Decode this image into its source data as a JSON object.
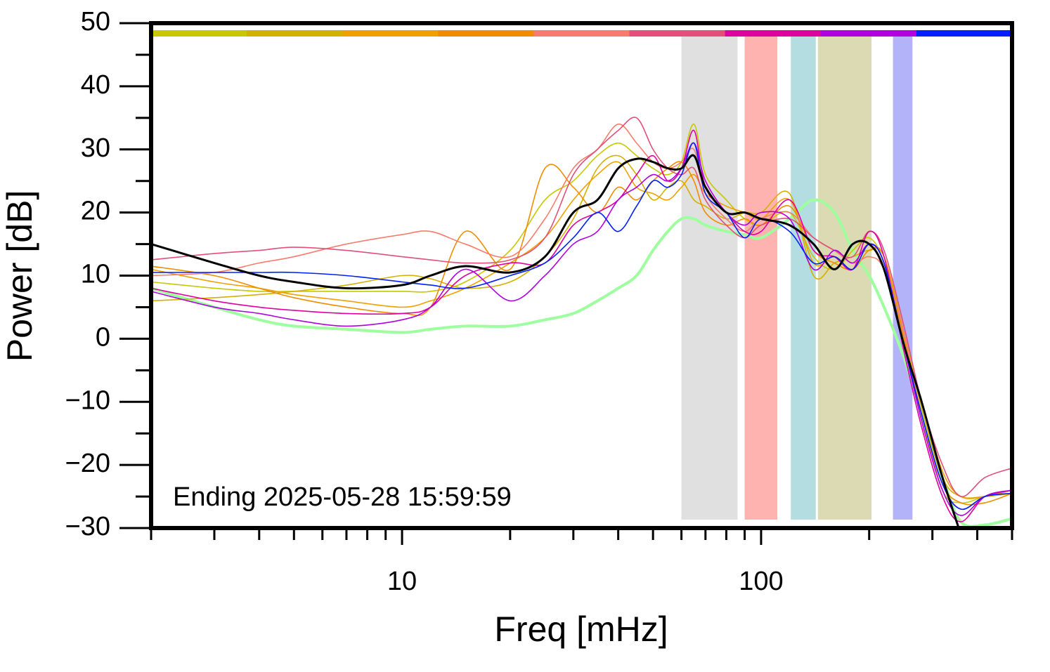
{
  "chart_data": {
    "type": "line",
    "xlabel": "Freq [mHz]",
    "ylabel": "Power [dB]",
    "annotation": "Ending 2025-05-28 15:59:59",
    "xscale": "log",
    "xlim": [
      2,
      500
    ],
    "ylim": [
      -30,
      50
    ],
    "xticks": [
      10,
      100
    ],
    "xminor_ticks": [
      2,
      3,
      4,
      5,
      6,
      7,
      8,
      9,
      20,
      30,
      40,
      50,
      60,
      70,
      80,
      90,
      200,
      300,
      400,
      500
    ],
    "yticks": [
      {
        "value": -30,
        "label": "−30"
      },
      {
        "value": -20,
        "label": "−20"
      },
      {
        "value": -10,
        "label": "−10"
      },
      0,
      10,
      20,
      30,
      40,
      50
    ],
    "yminor_ticks": [
      -25,
      -15,
      -5,
      5,
      15,
      25,
      35,
      45
    ],
    "bands": [
      {
        "from": 60,
        "to": 86,
        "color": "#e0e0e0"
      },
      {
        "from": 90,
        "to": 111,
        "color": "#ffb3b0"
      },
      {
        "from": 121,
        "to": 142,
        "color": "#b3dde0"
      },
      {
        "from": 144,
        "to": 203,
        "color": "#dcdab2"
      },
      {
        "from": 233,
        "to": 264,
        "color": "#b3b3fa"
      }
    ],
    "x": [
      2,
      3,
      4,
      5,
      7,
      10,
      12,
      15,
      20,
      25,
      30,
      35,
      40,
      45,
      50,
      55,
      60,
      65,
      70,
      80,
      90,
      100,
      120,
      140,
      160,
      180,
      200,
      220,
      250,
      280,
      320,
      360,
      420,
      500
    ],
    "series": [
      {
        "color": "#9dff9d",
        "width": 4,
        "values": [
          8,
          5,
          3,
          2,
          1.5,
          1,
          1.5,
          2,
          2,
          3,
          4,
          6,
          8,
          10,
          14,
          17,
          19,
          19,
          18,
          17,
          16.5,
          16,
          19,
          22,
          20,
          14,
          10,
          5,
          -3,
          -12,
          -22,
          -29,
          -29.5,
          -28.5
        ]
      },
      {
        "color": "#c8c800",
        "width": 1.6,
        "values": [
          9,
          8,
          7.5,
          7.5,
          7.5,
          7.5,
          7.5,
          9,
          14,
          22,
          25,
          29,
          31,
          29,
          27,
          26,
          28,
          34,
          26,
          22,
          19,
          18,
          20,
          13,
          11,
          14,
          16,
          12,
          0,
          -12,
          -24,
          -26,
          -25,
          -24
        ]
      },
      {
        "color": "#d4b000",
        "width": 1.6,
        "values": [
          6,
          6.5,
          7,
          7.5,
          8.5,
          10,
          9.5,
          8,
          9,
          13,
          19,
          27,
          29,
          26,
          22,
          24,
          25,
          22,
          21,
          19,
          20,
          20,
          23,
          10,
          12,
          13,
          14,
          13,
          1,
          -11,
          -22,
          -25,
          -25,
          -24.5
        ]
      },
      {
        "color": "#f0a000",
        "width": 1.6,
        "values": [
          11,
          9,
          8,
          7,
          6,
          5,
          6,
          8,
          12,
          16,
          22,
          26,
          28,
          24,
          23,
          22,
          24,
          26,
          23,
          21,
          20,
          19,
          22,
          12,
          13,
          11,
          15,
          12,
          0,
          -10,
          -21,
          -25,
          -25,
          -24
        ]
      },
      {
        "color": "#f08c00",
        "width": 1.6,
        "values": [
          11.5,
          10,
          8,
          6.5,
          5,
          4,
          5,
          17,
          11,
          27,
          24,
          20,
          24,
          22,
          25,
          27,
          28,
          25,
          20,
          18,
          19,
          18,
          21,
          14,
          12,
          11,
          14,
          13,
          0,
          -12,
          -23,
          -26,
          -26,
          -24.5
        ]
      },
      {
        "color": "#f87c6c",
        "width": 1.6,
        "values": [
          10,
          10.5,
          12,
          13,
          15,
          16.5,
          17,
          15,
          13,
          19,
          27,
          30,
          34,
          31,
          28,
          27,
          28,
          30,
          23,
          19,
          17,
          19,
          20,
          16,
          14,
          12,
          13,
          11,
          1,
          -13,
          -23,
          -27,
          -25,
          -24
        ]
      },
      {
        "color": "#e0507a",
        "width": 1.6,
        "values": [
          12.5,
          13.5,
          14,
          14.5,
          14,
          13,
          12.5,
          12,
          12.5,
          16,
          26,
          30,
          33,
          35,
          30,
          27,
          26,
          27,
          22,
          18,
          16,
          18,
          19,
          16,
          14,
          13,
          17,
          14,
          2,
          -10,
          -20,
          -25,
          -22,
          -20.5
        ]
      },
      {
        "color": "#e000a0",
        "width": 1.6,
        "values": [
          8,
          6,
          5,
          4.5,
          4,
          4,
          5,
          10,
          12,
          12,
          18,
          20,
          22,
          26,
          29,
          25,
          27,
          33,
          24,
          20,
          17,
          17,
          22,
          14,
          13,
          11,
          17,
          13,
          -2,
          -14,
          -25,
          -29,
          -25,
          -24
        ]
      },
      {
        "color": "#b000e0",
        "width": 1.6,
        "values": [
          7.5,
          5,
          4,
          3,
          2,
          3,
          5,
          11,
          6,
          10,
          15,
          17,
          22,
          24,
          26,
          25,
          27,
          31,
          25,
          20,
          18,
          20,
          19,
          11,
          14,
          12,
          15,
          12,
          -1,
          -13,
          -24,
          -28,
          -25,
          -24
        ]
      },
      {
        "color": "#0020ff",
        "width": 1.6,
        "values": [
          10.5,
          10.5,
          10.5,
          10.5,
          10,
          9,
          8.5,
          8,
          10,
          12,
          16,
          20,
          17,
          21,
          25,
          24,
          26,
          31,
          23,
          20,
          16,
          19,
          17,
          12,
          13,
          11,
          15,
          12,
          -1,
          -12,
          -23,
          -27,
          -25,
          -24.5
        ]
      },
      {
        "color": "#000000",
        "width": 3,
        "values": [
          15,
          12,
          10,
          9,
          8,
          8.5,
          10,
          11.5,
          10.5,
          13,
          20,
          22,
          27,
          28.5,
          28,
          27,
          27,
          29,
          24,
          20,
          20,
          19,
          18,
          15,
          11,
          15,
          15,
          11,
          -1,
          -10,
          -22,
          -31,
          null,
          null
        ]
      }
    ]
  }
}
